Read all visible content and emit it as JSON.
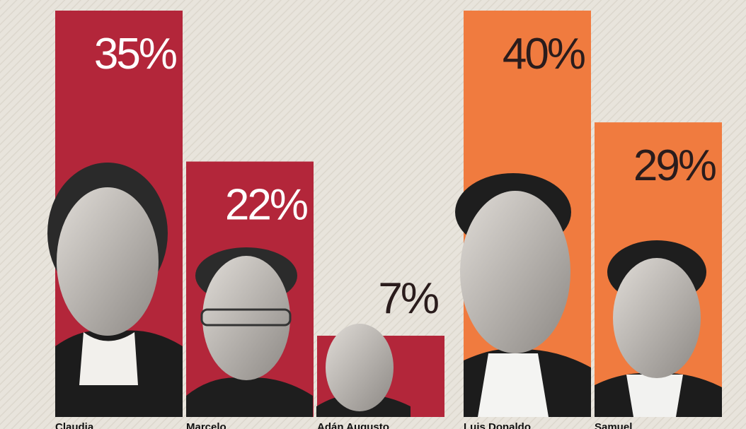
{
  "chart_data": [
    {
      "type": "bar",
      "categories": [
        "Claudia",
        "Marcelo",
        "Adán Augusto"
      ],
      "values": [
        35,
        22,
        7
      ],
      "value_labels": [
        "35%",
        "22%",
        "7%"
      ],
      "color": "#b3263a",
      "ylim": [
        0,
        35
      ]
    },
    {
      "type": "bar",
      "categories": [
        "Luis Donaldo",
        "Samuel"
      ],
      "values": [
        40,
        29
      ],
      "value_labels": [
        "40%",
        "29%"
      ],
      "color": "#f07b3f",
      "ylim": [
        0,
        40
      ]
    }
  ]
}
